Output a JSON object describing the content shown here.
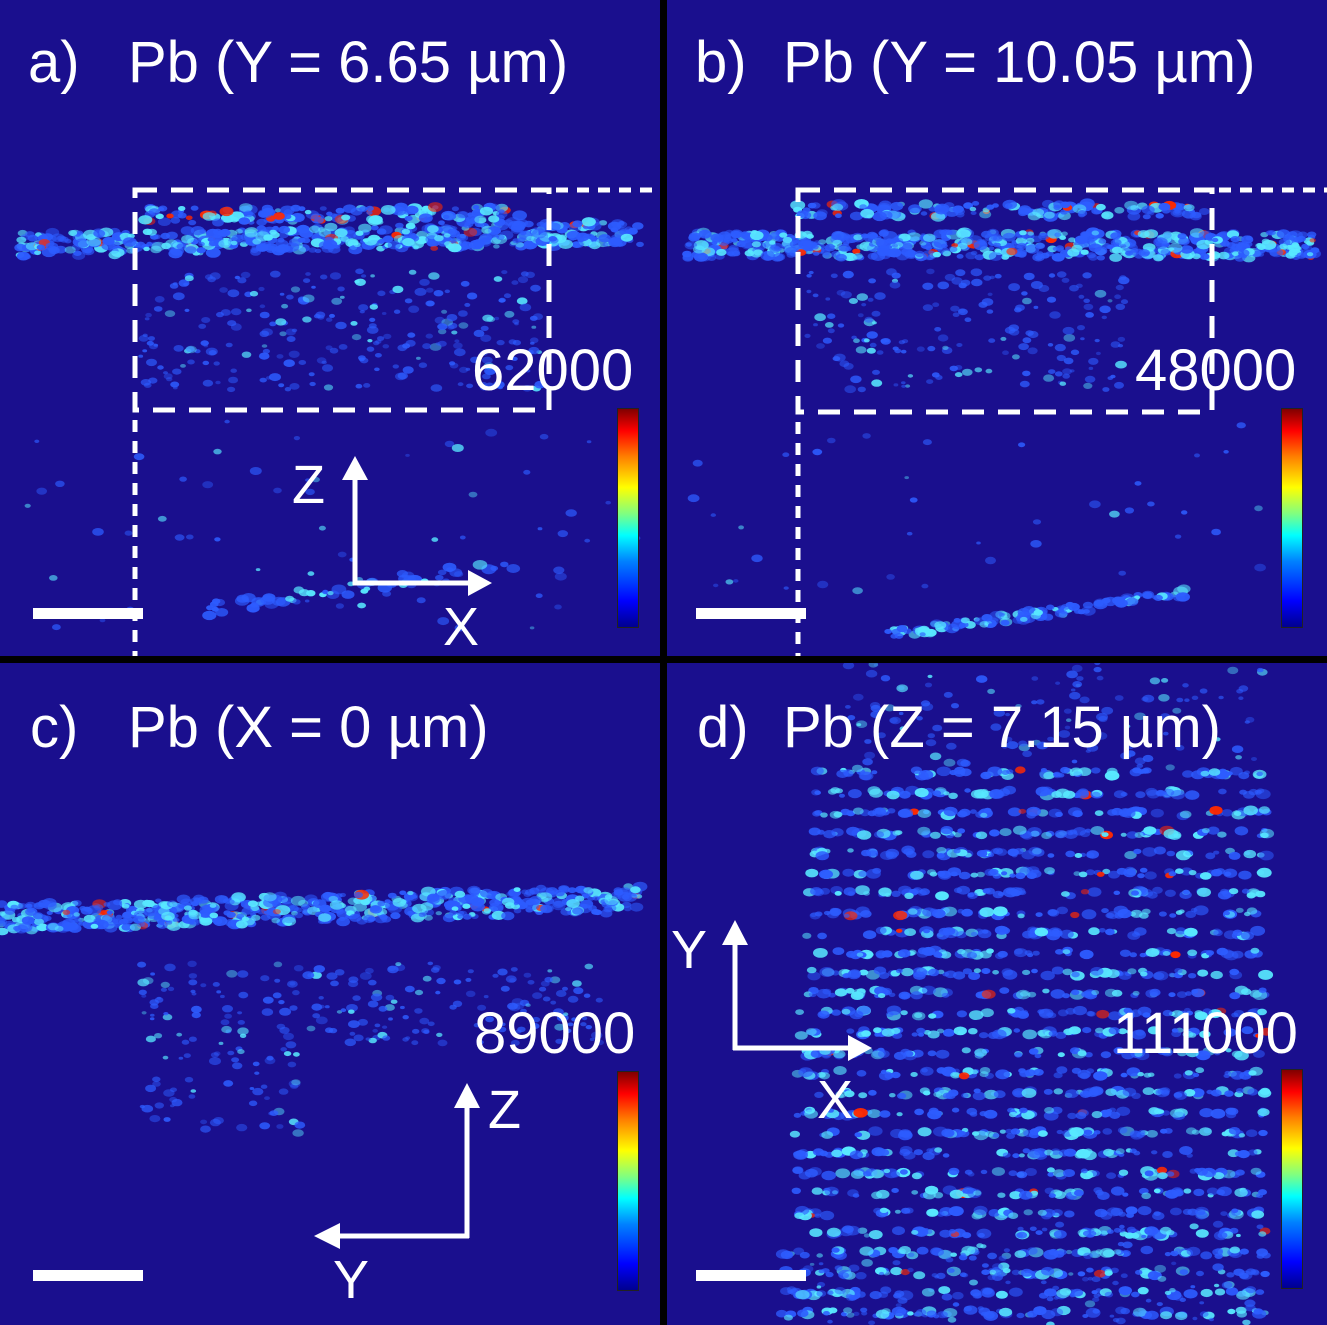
{
  "panels": [
    {
      "letter": "a)",
      "title": "Pb (Y = 6.65 µm)",
      "colorbar_max": "62000",
      "axes": {
        "vertical": "Z",
        "horizontal": "X"
      }
    },
    {
      "letter": "b)",
      "title": "Pb (Y = 10.05 µm)",
      "colorbar_max": "48000"
    },
    {
      "letter": "c)",
      "title": "Pb (X = 0 µm)",
      "colorbar_max": "89000",
      "axes": {
        "vertical": "Z",
        "horizontal": "Y"
      }
    },
    {
      "letter": "d)",
      "title": "Pb (Z = 7.15 µm)",
      "colorbar_max": "111000",
      "axes": {
        "vertical": "Y",
        "horizontal": "X"
      }
    }
  ],
  "colors": {
    "background": "#1a0f8e",
    "signal_low": "#2d5cff",
    "signal_mid": "#58e8ff",
    "signal_high": "#ff2a00"
  }
}
